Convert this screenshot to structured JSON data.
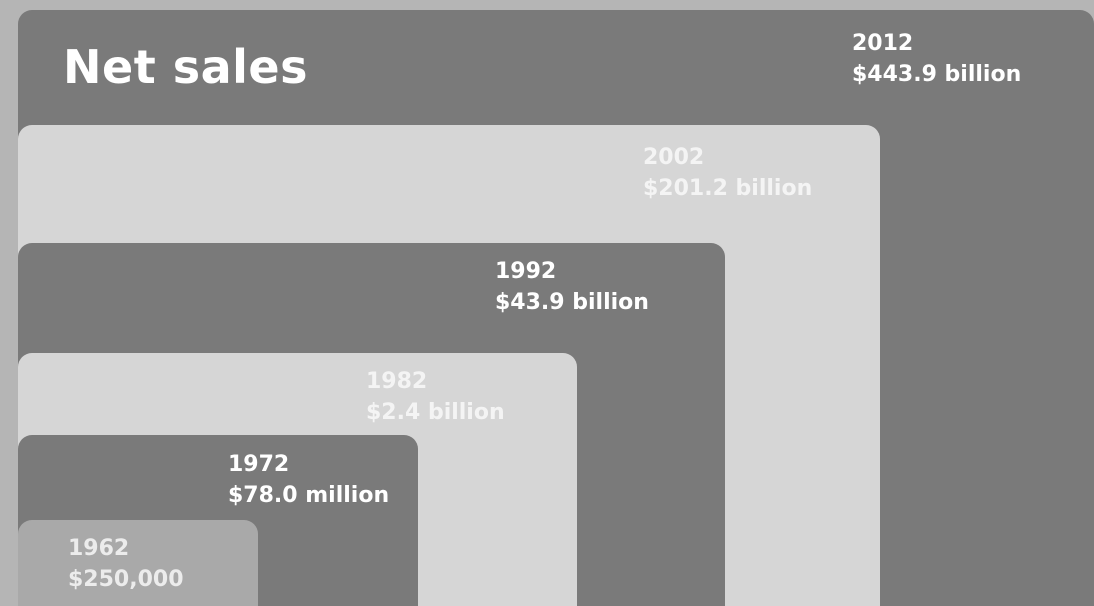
{
  "chart_data": {
    "type": "area",
    "title": "Net sales",
    "categories": [
      "1962",
      "1972",
      "1982",
      "1992",
      "2002",
      "2012"
    ],
    "value_labels": [
      "$250,000",
      "$78.0 million",
      "$2.4 billion",
      "$43.9 billion",
      "$201.2 billion",
      "$443.9 billion"
    ],
    "values_usd": [
      250000,
      78000000,
      2400000000,
      43900000000,
      201200000000,
      443900000000
    ],
    "colors": {
      "background": "#b5b5b5",
      "dark": "#7a7a7a",
      "light": "#d6d6d6",
      "smallest": "#a9a9a9",
      "light_text": "#ececec"
    }
  }
}
